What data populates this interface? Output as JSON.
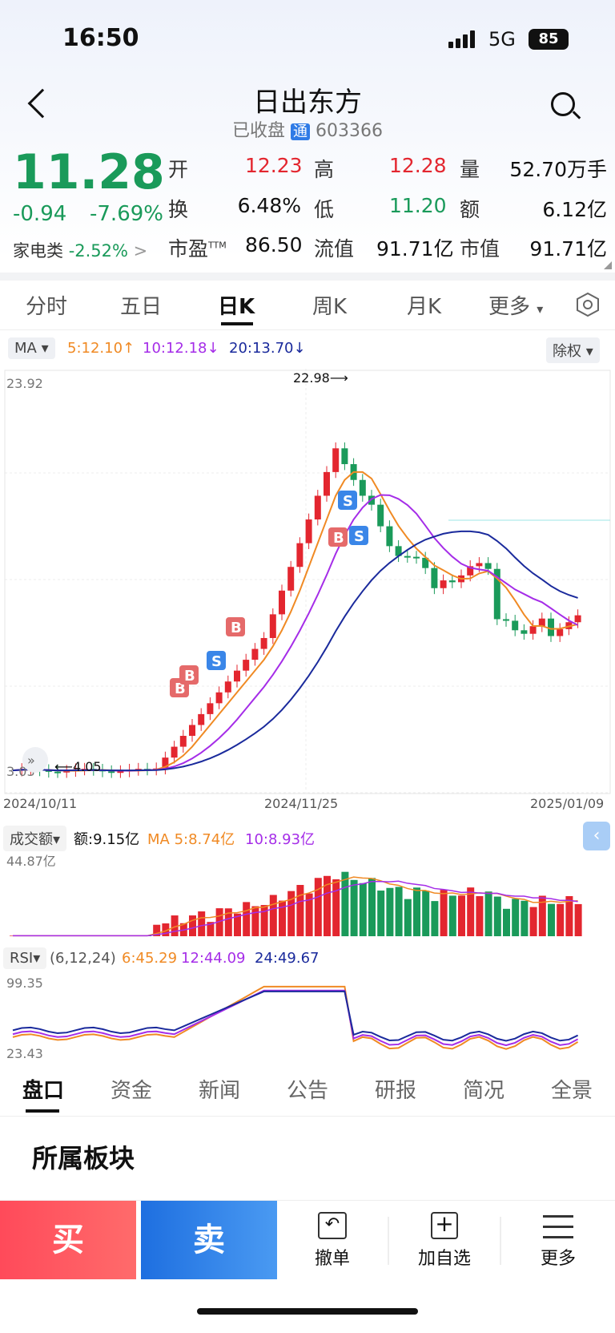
{
  "status": {
    "time": "16:50",
    "network": "5G",
    "battery": "85"
  },
  "header": {
    "title": "日出东方",
    "state": "已收盘",
    "tong": "通",
    "code": "603366"
  },
  "quote": {
    "price": "11.28",
    "change": "-0.94",
    "pct": "-7.69%",
    "sector": "家电类",
    "sector_pct": "-2.52%"
  },
  "stats": [
    {
      "k": "开",
      "v": "12.23"
    },
    {
      "k": "高",
      "v": "12.28"
    },
    {
      "k": "量",
      "v": "52.70万手"
    },
    {
      "k": "换",
      "v": "6.48%"
    },
    {
      "k": "低",
      "v": "11.20"
    },
    {
      "k": "额",
      "v": "6.12亿"
    },
    {
      "k": "市盈",
      "v": "86.50"
    },
    {
      "k": "流值",
      "v": "91.71亿"
    },
    {
      "k": "市值",
      "v": "91.71亿"
    }
  ],
  "pe_sup": "TTM",
  "tabs": [
    "分时",
    "五日",
    "日K",
    "周K",
    "月K",
    "更多"
  ],
  "ma": {
    "label": "MA",
    "m5": "5:12.10",
    "m10": "10:12.18",
    "m20": "20:13.70",
    "fq": "除权"
  },
  "kline": {
    "high_label": "23.92",
    "low_label": "3.03",
    "max_mark": "22.98",
    "min_mark": "4.05",
    "d1": "2024/10/11",
    "d2": "2024/11/25",
    "d3": "2025/01/09"
  },
  "vol": {
    "label": "成交额",
    "amt": "额:9.15亿",
    "ma5": "MA 5:8.74亿",
    "ma10": "10:8.93亿",
    "max": "44.87亿"
  },
  "rsi": {
    "label": "RSI",
    "params": "(6,12,24)",
    "r6": "6:45.29",
    "r12": "12:44.09",
    "r24": "24:49.67",
    "max": "99.35",
    "min": "23.43"
  },
  "bottom_tabs": [
    "盘口",
    "资金",
    "新闻",
    "公告",
    "研报",
    "简况",
    "全景"
  ],
  "section": "所属板块",
  "actions": {
    "buy": "买",
    "sell": "卖",
    "cancel": "撤单",
    "add": "加自选",
    "more": "更多"
  },
  "colors": {
    "up": "#e3262f",
    "down": "#1a9a5a",
    "ma5": "#f08a24",
    "ma10": "#a52de8",
    "ma20": "#1a2a9c"
  }
}
